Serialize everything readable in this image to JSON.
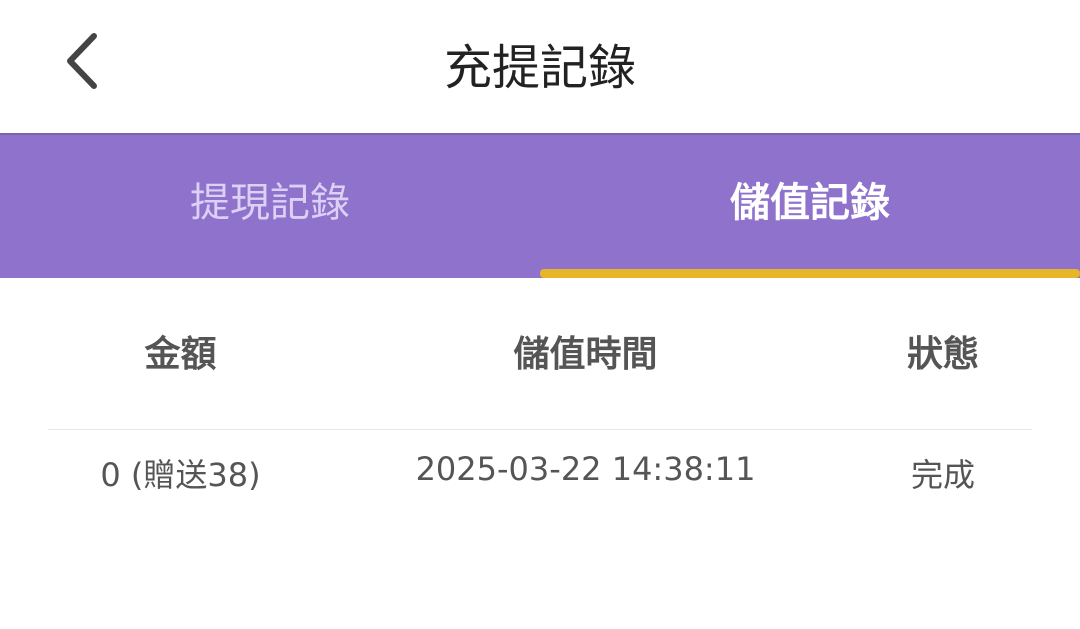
{
  "header": {
    "title": "充提記錄",
    "back_icon": "chevron-left-icon"
  },
  "tabs": [
    {
      "label": "提現記錄",
      "active": false
    },
    {
      "label": "儲值記錄",
      "active": true
    }
  ],
  "colors": {
    "tab_bar": "#8e72cc",
    "indicator": "#e8b428"
  },
  "table": {
    "columns": [
      "金額",
      "儲值時間",
      "狀態"
    ],
    "rows": [
      [
        "0 (贈送38)",
        "2025-03-22 14:38:11",
        "完成"
      ]
    ]
  }
}
